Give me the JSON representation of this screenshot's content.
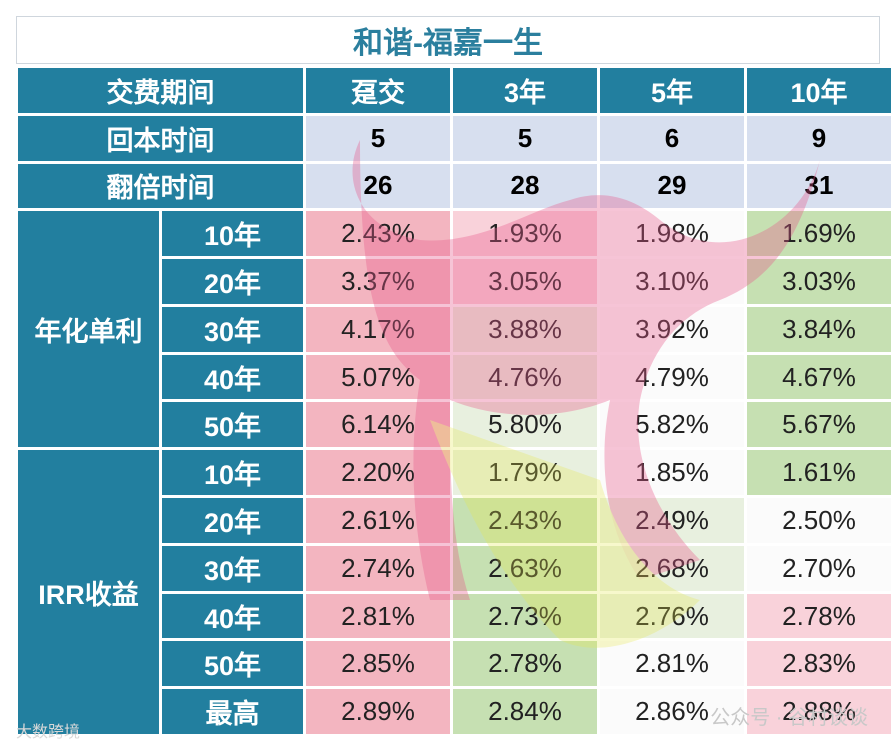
{
  "title": "和谐-福嘉一生",
  "header": {
    "label": "交费期间",
    "columns": [
      "趸交",
      "3年",
      "5年",
      "10年"
    ]
  },
  "payback": {
    "label": "回本时间",
    "values": [
      "5",
      "5",
      "6",
      "9"
    ]
  },
  "double": {
    "label": "翻倍时间",
    "values": [
      "26",
      "28",
      "29",
      "31"
    ]
  },
  "simple": {
    "label": "年化单利",
    "rows": [
      {
        "year": "10年",
        "values": [
          "2.43%",
          "1.93%",
          "1.98%",
          "1.69%"
        ]
      },
      {
        "year": "20年",
        "values": [
          "3.37%",
          "3.05%",
          "3.10%",
          "3.03%"
        ]
      },
      {
        "year": "30年",
        "values": [
          "4.17%",
          "3.88%",
          "3.92%",
          "3.84%"
        ]
      },
      {
        "year": "40年",
        "values": [
          "5.07%",
          "4.76%",
          "4.79%",
          "4.67%"
        ]
      },
      {
        "year": "50年",
        "values": [
          "6.14%",
          "5.80%",
          "5.82%",
          "5.67%"
        ]
      }
    ]
  },
  "irr": {
    "label": "IRR收益",
    "rows": [
      {
        "year": "10年",
        "values": [
          "2.20%",
          "1.79%",
          "1.85%",
          "1.61%"
        ]
      },
      {
        "year": "20年",
        "values": [
          "2.61%",
          "2.43%",
          "2.49%",
          "2.50%"
        ]
      },
      {
        "year": "30年",
        "values": [
          "2.74%",
          "2.63%",
          "2.68%",
          "2.70%"
        ]
      },
      {
        "year": "40年",
        "values": [
          "2.81%",
          "2.73%",
          "2.76%",
          "2.78%"
        ]
      },
      {
        "year": "50年",
        "values": [
          "2.85%",
          "2.78%",
          "2.81%",
          "2.83%"
        ]
      },
      {
        "year": "最高",
        "values": [
          "2.89%",
          "2.84%",
          "2.86%",
          "2.88%"
        ]
      }
    ]
  },
  "watermarks": {
    "left": "大数跨境",
    "right": "公众号 · 谷村谈谈"
  },
  "colors": {
    "header_bg": "#227f9f",
    "title_text": "#2b7f9e",
    "light_blue": "#d7dfef",
    "red": "#f3b5c0",
    "green": "#c6e0b2"
  }
}
